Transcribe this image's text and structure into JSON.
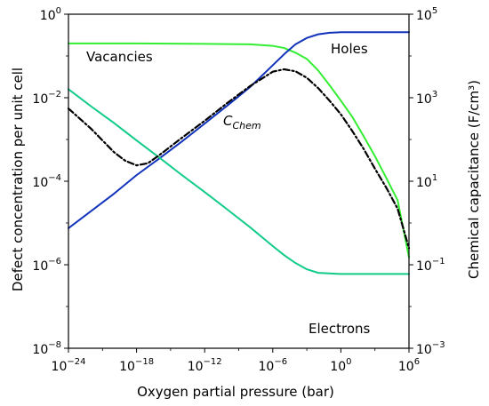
{
  "chart_data": {
    "type": "line",
    "xlabel": "Oxygen partial pressure (bar)",
    "ylabel_left": "Defect concentration per unit cell",
    "ylabel_right": "Chemical capacitance (F/cm³)",
    "x_scale": "log",
    "y_scale": "log",
    "xlim": [
      1e-24,
      1000000.0
    ],
    "ylim_left": [
      1e-08,
      1
    ],
    "ylim_right": [
      0.001,
      100000.0
    ],
    "grid": false,
    "x_ticks": [
      {
        "value": 1e-24,
        "base": "10",
        "exp": "−24"
      },
      {
        "value": 1e-18,
        "base": "10",
        "exp": "−18"
      },
      {
        "value": 1e-12,
        "base": "10",
        "exp": "−12"
      },
      {
        "value": 1e-06,
        "base": "10",
        "exp": "−6"
      },
      {
        "value": 1,
        "base": "10",
        "exp": "0"
      },
      {
        "value": 1000000.0,
        "base": "10",
        "exp": "6"
      }
    ],
    "y_ticks_left": [
      {
        "value": 1e-08,
        "base": "10",
        "exp": "−8"
      },
      {
        "value": 1e-06,
        "base": "10",
        "exp": "−6"
      },
      {
        "value": 0.0001,
        "base": "10",
        "exp": "−4"
      },
      {
        "value": 0.01,
        "base": "10",
        "exp": "−2"
      },
      {
        "value": 1,
        "base": "10",
        "exp": "0"
      }
    ],
    "y_ticks_right": [
      {
        "value": 0.001,
        "base": "10",
        "exp": "−3"
      },
      {
        "value": 0.1,
        "base": "10",
        "exp": "−1"
      },
      {
        "value": 10,
        "base": "10",
        "exp": "1"
      },
      {
        "value": 1000.0,
        "base": "10",
        "exp": "3"
      },
      {
        "value": 100000.0,
        "base": "10",
        "exp": "5"
      }
    ],
    "series": [
      {
        "name": "Vacancies",
        "axis": "left",
        "color": "#33ee33",
        "dash": "solid",
        "x": [
          1e-24,
          1e-18,
          1e-12,
          1e-08,
          1e-06,
          1e-05,
          0.0001,
          0.001,
          0.01,
          0.1,
          1,
          10.0,
          100.0,
          1000.0,
          10000.0,
          100000.0,
          1000000.0
        ],
        "y": [
          0.2,
          0.2,
          0.195,
          0.19,
          0.175,
          0.155,
          0.12,
          0.085,
          0.045,
          0.02,
          0.0085,
          0.0035,
          0.0012,
          0.0004,
          0.00012,
          3.5e-05,
          1.5e-06
        ]
      },
      {
        "name": "Holes",
        "axis": "left",
        "color": "#1133bb",
        "dash": "solid",
        "x": [
          1e-24,
          1e-20,
          1e-18,
          1e-16,
          1e-14,
          1e-12,
          1e-10,
          1e-08,
          1e-06,
          1e-05,
          0.0001,
          0.001,
          0.01,
          0.1,
          1,
          1000000.0
        ],
        "y": [
          7.5e-06,
          5e-05,
          0.00014,
          0.00035,
          0.0009,
          0.0024,
          0.0065,
          0.018,
          0.06,
          0.11,
          0.19,
          0.27,
          0.33,
          0.36,
          0.37,
          0.37
        ]
      },
      {
        "name": "Electrons",
        "axis": "left",
        "color": "#11cc88",
        "dash": "solid",
        "x": [
          1e-24,
          1e-22,
          1e-20,
          1e-18,
          1e-16,
          1e-14,
          1e-12,
          1e-10,
          1e-08,
          1e-06,
          1e-05,
          0.0001,
          0.001,
          0.01,
          0.1,
          1,
          1000000.0
        ],
        "y": [
          0.016,
          0.0062,
          0.0025,
          0.00095,
          0.00037,
          0.00014,
          5.5e-05,
          2.1e-05,
          7.9e-06,
          2.8e-06,
          1.7e-06,
          1.1e-06,
          7.8e-07,
          6.4e-07,
          6.2e-07,
          6e-07,
          6e-07
        ]
      },
      {
        "name": "C_Chem",
        "axis": "left",
        "color": "#000000",
        "dash": "dashdot",
        "x": [
          1e-24,
          1e-22,
          1e-20,
          1e-19,
          1e-18,
          1e-17,
          1e-16,
          1e-14,
          1e-12,
          1e-10,
          1e-08,
          1e-06,
          1e-05,
          0.0001,
          0.001,
          0.01,
          0.1,
          1,
          10.0,
          100.0,
          1000.0,
          10000.0,
          100000.0,
          1000000.0
        ],
        "y": [
          0.0055,
          0.0018,
          0.0005,
          0.00031,
          0.00024,
          0.00027,
          0.00042,
          0.0011,
          0.0028,
          0.0075,
          0.019,
          0.042,
          0.048,
          0.043,
          0.03,
          0.017,
          0.0085,
          0.004,
          0.0016,
          0.0006,
          0.0002,
          7e-05,
          2.2e-05,
          2.5e-06
        ]
      }
    ],
    "annotations": {
      "vacancies": "Vacancies",
      "holes": "Holes",
      "electrons": "Electrons",
      "cchem_main": "C",
      "cchem_sub": "Chem"
    }
  }
}
